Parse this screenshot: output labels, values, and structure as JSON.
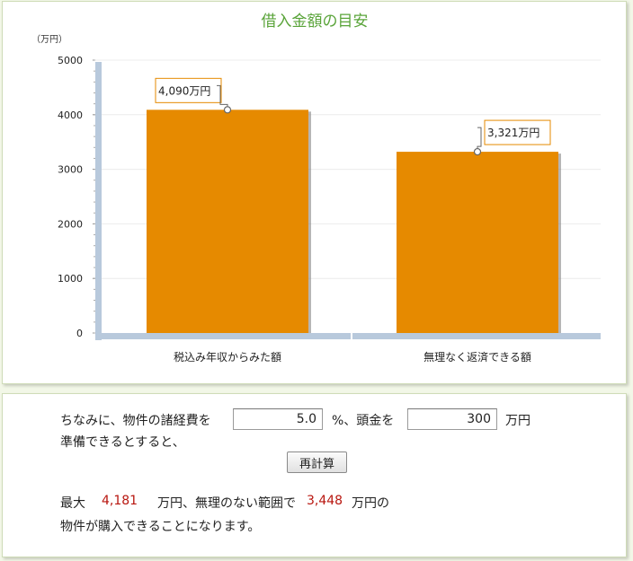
{
  "chart_data": {
    "type": "bar",
    "title": "借入金額の目安",
    "unit_label": "（万円）",
    "categories": [
      "税込み年収からみた額",
      "無理なく返済できる額"
    ],
    "values": [
      4090,
      3321
    ],
    "data_labels": [
      "4,090万円",
      "3,321万円"
    ],
    "yticks": [
      "0",
      "1000",
      "2000",
      "3000",
      "4000",
      "5000"
    ],
    "ylim": [
      0,
      5000
    ],
    "grid": true,
    "legend": "none",
    "colors": {
      "bar": "#e68a00",
      "title": "#5aa43a",
      "axis": "#b8c9dc",
      "label_border": "#e68a00"
    }
  },
  "calc": {
    "line1_prefix": "ちなみに、物件の諸経費を",
    "expense_rate": "5.0",
    "line1_mid": "%、頭金を",
    "down_payment": "300",
    "line1_unit": "万円",
    "line2": "準備できるとすると、",
    "recalc_button": "再計算",
    "result_prefix": "最大",
    "max_amount": "4,181",
    "result_mid": "万円、無理のない範囲で",
    "safe_amount": "3,448",
    "result_suffix": "万円の",
    "result_line2": "物件が購入できることになります。",
    "highlight_color": "#b8160f"
  }
}
